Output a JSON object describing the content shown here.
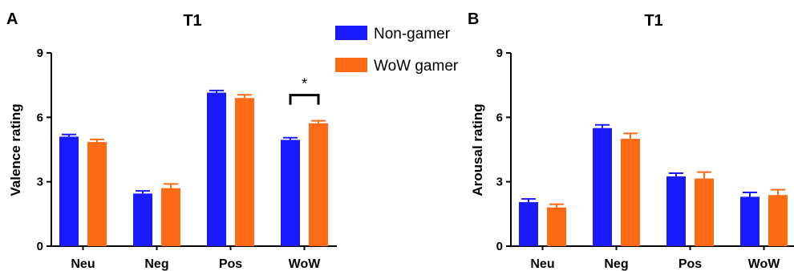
{
  "chart_data": [
    {
      "type": "bar",
      "panel": "A",
      "title": "T1",
      "xlabel": "",
      "ylabel": "Valence rating",
      "ylim": [
        0,
        9
      ],
      "yticks": [
        "0",
        "3",
        "6",
        "9"
      ],
      "categories": [
        "Neu",
        "Neg",
        "Pos",
        "WoW"
      ],
      "series": [
        {
          "name": "Non-gamer",
          "color": "#1a1aff",
          "values": [
            5.1,
            2.45,
            7.15,
            4.95
          ],
          "errors": [
            0.1,
            0.12,
            0.1,
            0.1
          ]
        },
        {
          "name": "WoW gamer",
          "color": "#ff6a13",
          "values": [
            4.85,
            2.7,
            6.9,
            5.72
          ],
          "errors": [
            0.12,
            0.2,
            0.15,
            0.12
          ]
        }
      ],
      "annotations": [
        {
          "category": "WoW",
          "text": "*"
        }
      ]
    },
    {
      "type": "bar",
      "panel": "B",
      "title": "T1",
      "xlabel": "",
      "ylabel": "Arousal rating",
      "ylim": [
        0,
        9
      ],
      "yticks": [
        "0",
        "3",
        "6",
        "9"
      ],
      "categories": [
        "Neu",
        "Neg",
        "Pos",
        "WoW"
      ],
      "series": [
        {
          "name": "Non-gamer",
          "color": "#1a1aff",
          "values": [
            2.05,
            5.5,
            3.25,
            2.3
          ],
          "errors": [
            0.15,
            0.15,
            0.15,
            0.2
          ]
        },
        {
          "name": "WoW gamer",
          "color": "#ff6a13",
          "values": [
            1.8,
            5.0,
            3.15,
            2.38
          ],
          "errors": [
            0.15,
            0.25,
            0.3,
            0.25
          ]
        }
      ],
      "annotations": []
    }
  ],
  "legend": {
    "items": [
      {
        "label": "Non-gamer",
        "color": "#1a1aff"
      },
      {
        "label": "WoW gamer",
        "color": "#ff6a13"
      }
    ]
  }
}
